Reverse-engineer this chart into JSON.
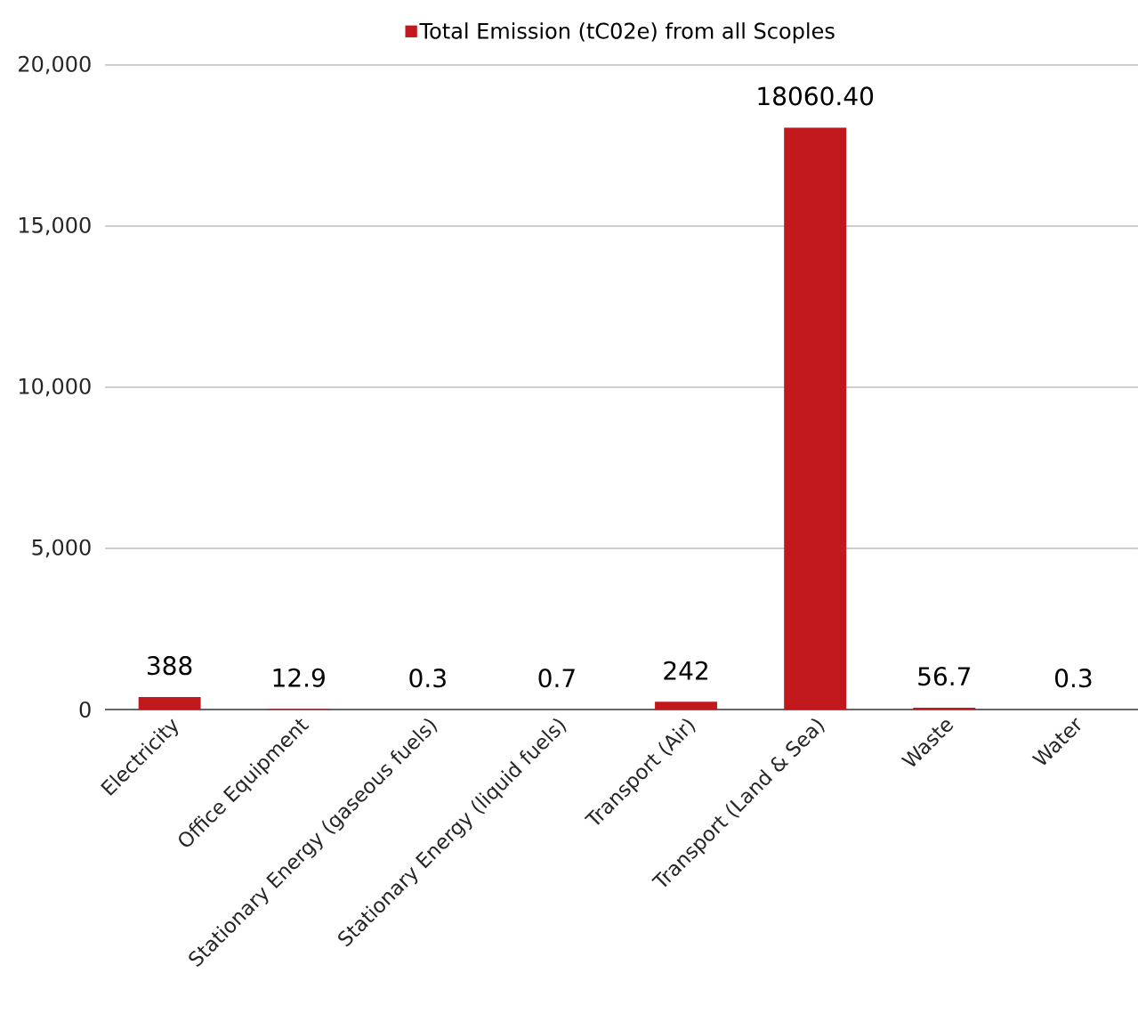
{
  "chart_data": {
    "type": "bar",
    "categories": [
      "Electricity",
      "Office Equipment",
      "Stationary Energy (gaseous fuels)",
      "Stationary Energy (liquid fuels)",
      "Transport (Air)",
      "Transport (Land & Sea)",
      "Waste",
      "Water"
    ],
    "series": [
      {
        "name": "Total Emission (tC02e) from all Scoples",
        "color": "#c0181d",
        "values": [
          388,
          12.9,
          0.3,
          0.7,
          242,
          18060.4,
          56.7,
          0.3
        ],
        "value_labels": [
          "388",
          "12.9",
          "0.3",
          "0.7",
          "242",
          "18060.40",
          "56.7",
          "0.3"
        ]
      }
    ],
    "ylim": [
      0,
      20000
    ],
    "yticks": [
      {
        "value": 0,
        "label": "0"
      },
      {
        "value": 5000,
        "label": "5,000"
      },
      {
        "value": 10000,
        "label": "10,000"
      },
      {
        "value": 15000,
        "label": "15,000"
      },
      {
        "value": 20000,
        "label": "20,000"
      }
    ],
    "grid": "y",
    "legend": "top"
  }
}
